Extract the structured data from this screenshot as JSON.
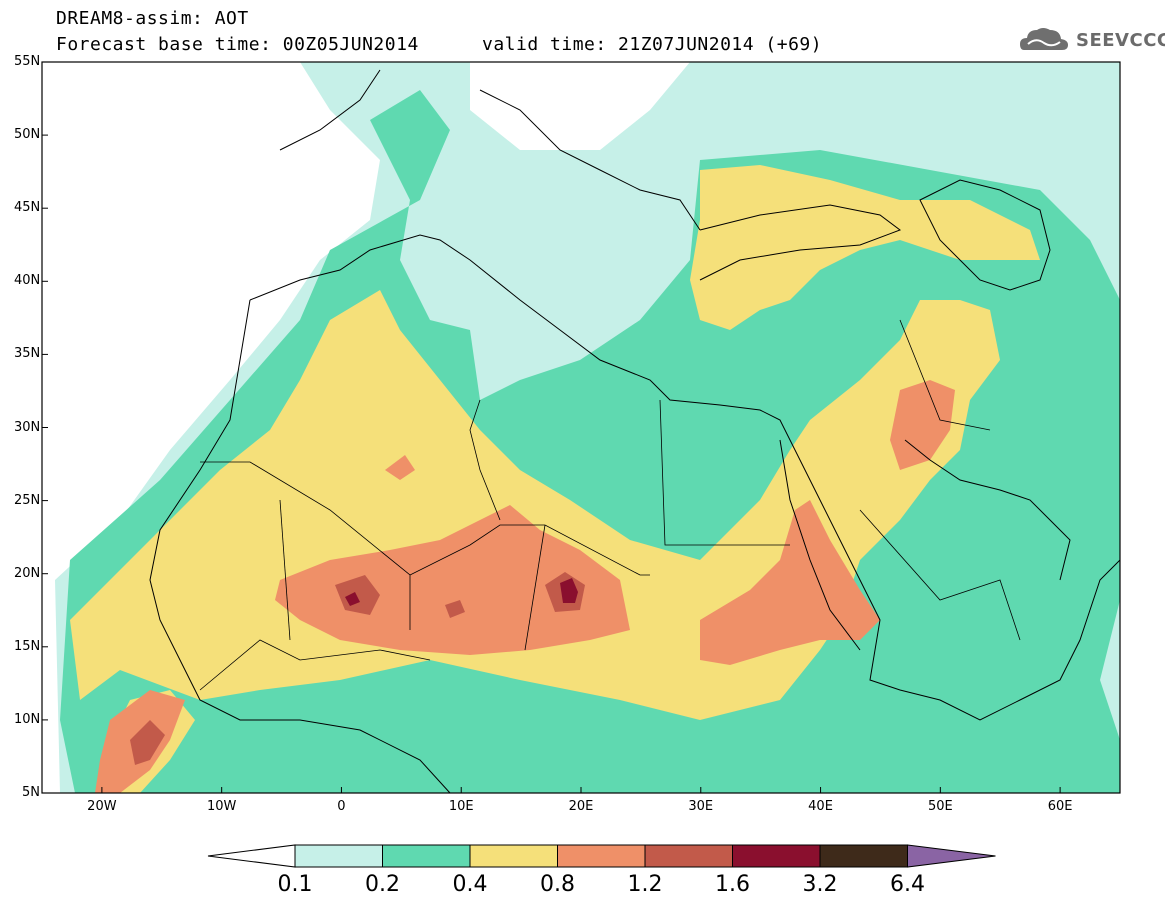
{
  "header": {
    "model_line": "DREAM8-assim: AOT",
    "base_time_line": "Forecast base time: 00Z05JUN2014",
    "valid_time_line": "valid time: 21Z07JUN2014 (+69)"
  },
  "logo": {
    "text": "SEEVCCC",
    "icon": "cloud-icon"
  },
  "map": {
    "lon_range": [
      -25,
      65
    ],
    "lat_range": [
      5,
      55
    ],
    "lat_labels": [
      "55N",
      "50N",
      "45N",
      "40N",
      "35N",
      "30N",
      "25N",
      "20N",
      "15N",
      "10N",
      "5N"
    ],
    "lon_labels": [
      "20W",
      "10W",
      "0",
      "10E",
      "20E",
      "30E",
      "40E",
      "50E",
      "60E"
    ],
    "grid": false
  },
  "colorbar": {
    "levels": [
      "0.1",
      "0.2",
      "0.4",
      "0.8",
      "1.2",
      "1.6",
      "3.2",
      "6.4"
    ],
    "colors": [
      "#c6f0e8",
      "#5fd9b0",
      "#f5e07a",
      "#ef9068",
      "#c25a4a",
      "#8a0f2e",
      "#3e2a1a",
      "#8a64a4"
    ]
  }
}
